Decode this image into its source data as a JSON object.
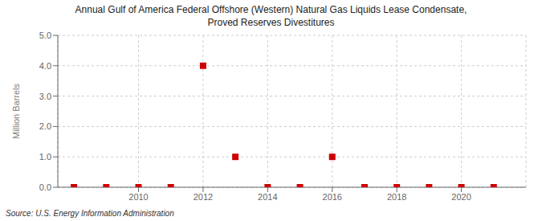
{
  "chart_data": {
    "type": "scatter",
    "title": "Annual Gulf of America Federal Offshore (Western) Natural Gas Liquids Lease Condensate,\nProved Reserves Divestitures",
    "ylabel": "Million Barrels",
    "annotations": [
      "Source: U.S. Energy Information Administration"
    ],
    "x": [
      2008,
      2009,
      2010,
      2011,
      2012,
      2013,
      2014,
      2015,
      2016,
      2017,
      2018,
      2019,
      2020,
      2021
    ],
    "values": [
      0.0,
      0.0,
      0.0,
      0.0,
      4.0,
      1.0,
      0.0,
      0.0,
      1.0,
      0.0,
      0.0,
      0.0,
      0.0,
      0.0
    ],
    "xlim": [
      2007.5,
      2022.0
    ],
    "ylim": [
      0.0,
      5.0
    ],
    "xticks": [
      2010,
      2012,
      2014,
      2016,
      2018,
      2020
    ],
    "yticks": [
      {
        "value": 0.0,
        "label": "0.0"
      },
      {
        "value": 1.0,
        "label": "1.0"
      },
      {
        "value": 2.0,
        "label": "2.0"
      },
      {
        "value": 3.0,
        "label": "3.0"
      },
      {
        "value": 4.0,
        "label": "4.0"
      },
      {
        "value": 5.0,
        "label": "5.0"
      }
    ],
    "color": "#cc0000",
    "marker": "square",
    "grid": true
  }
}
